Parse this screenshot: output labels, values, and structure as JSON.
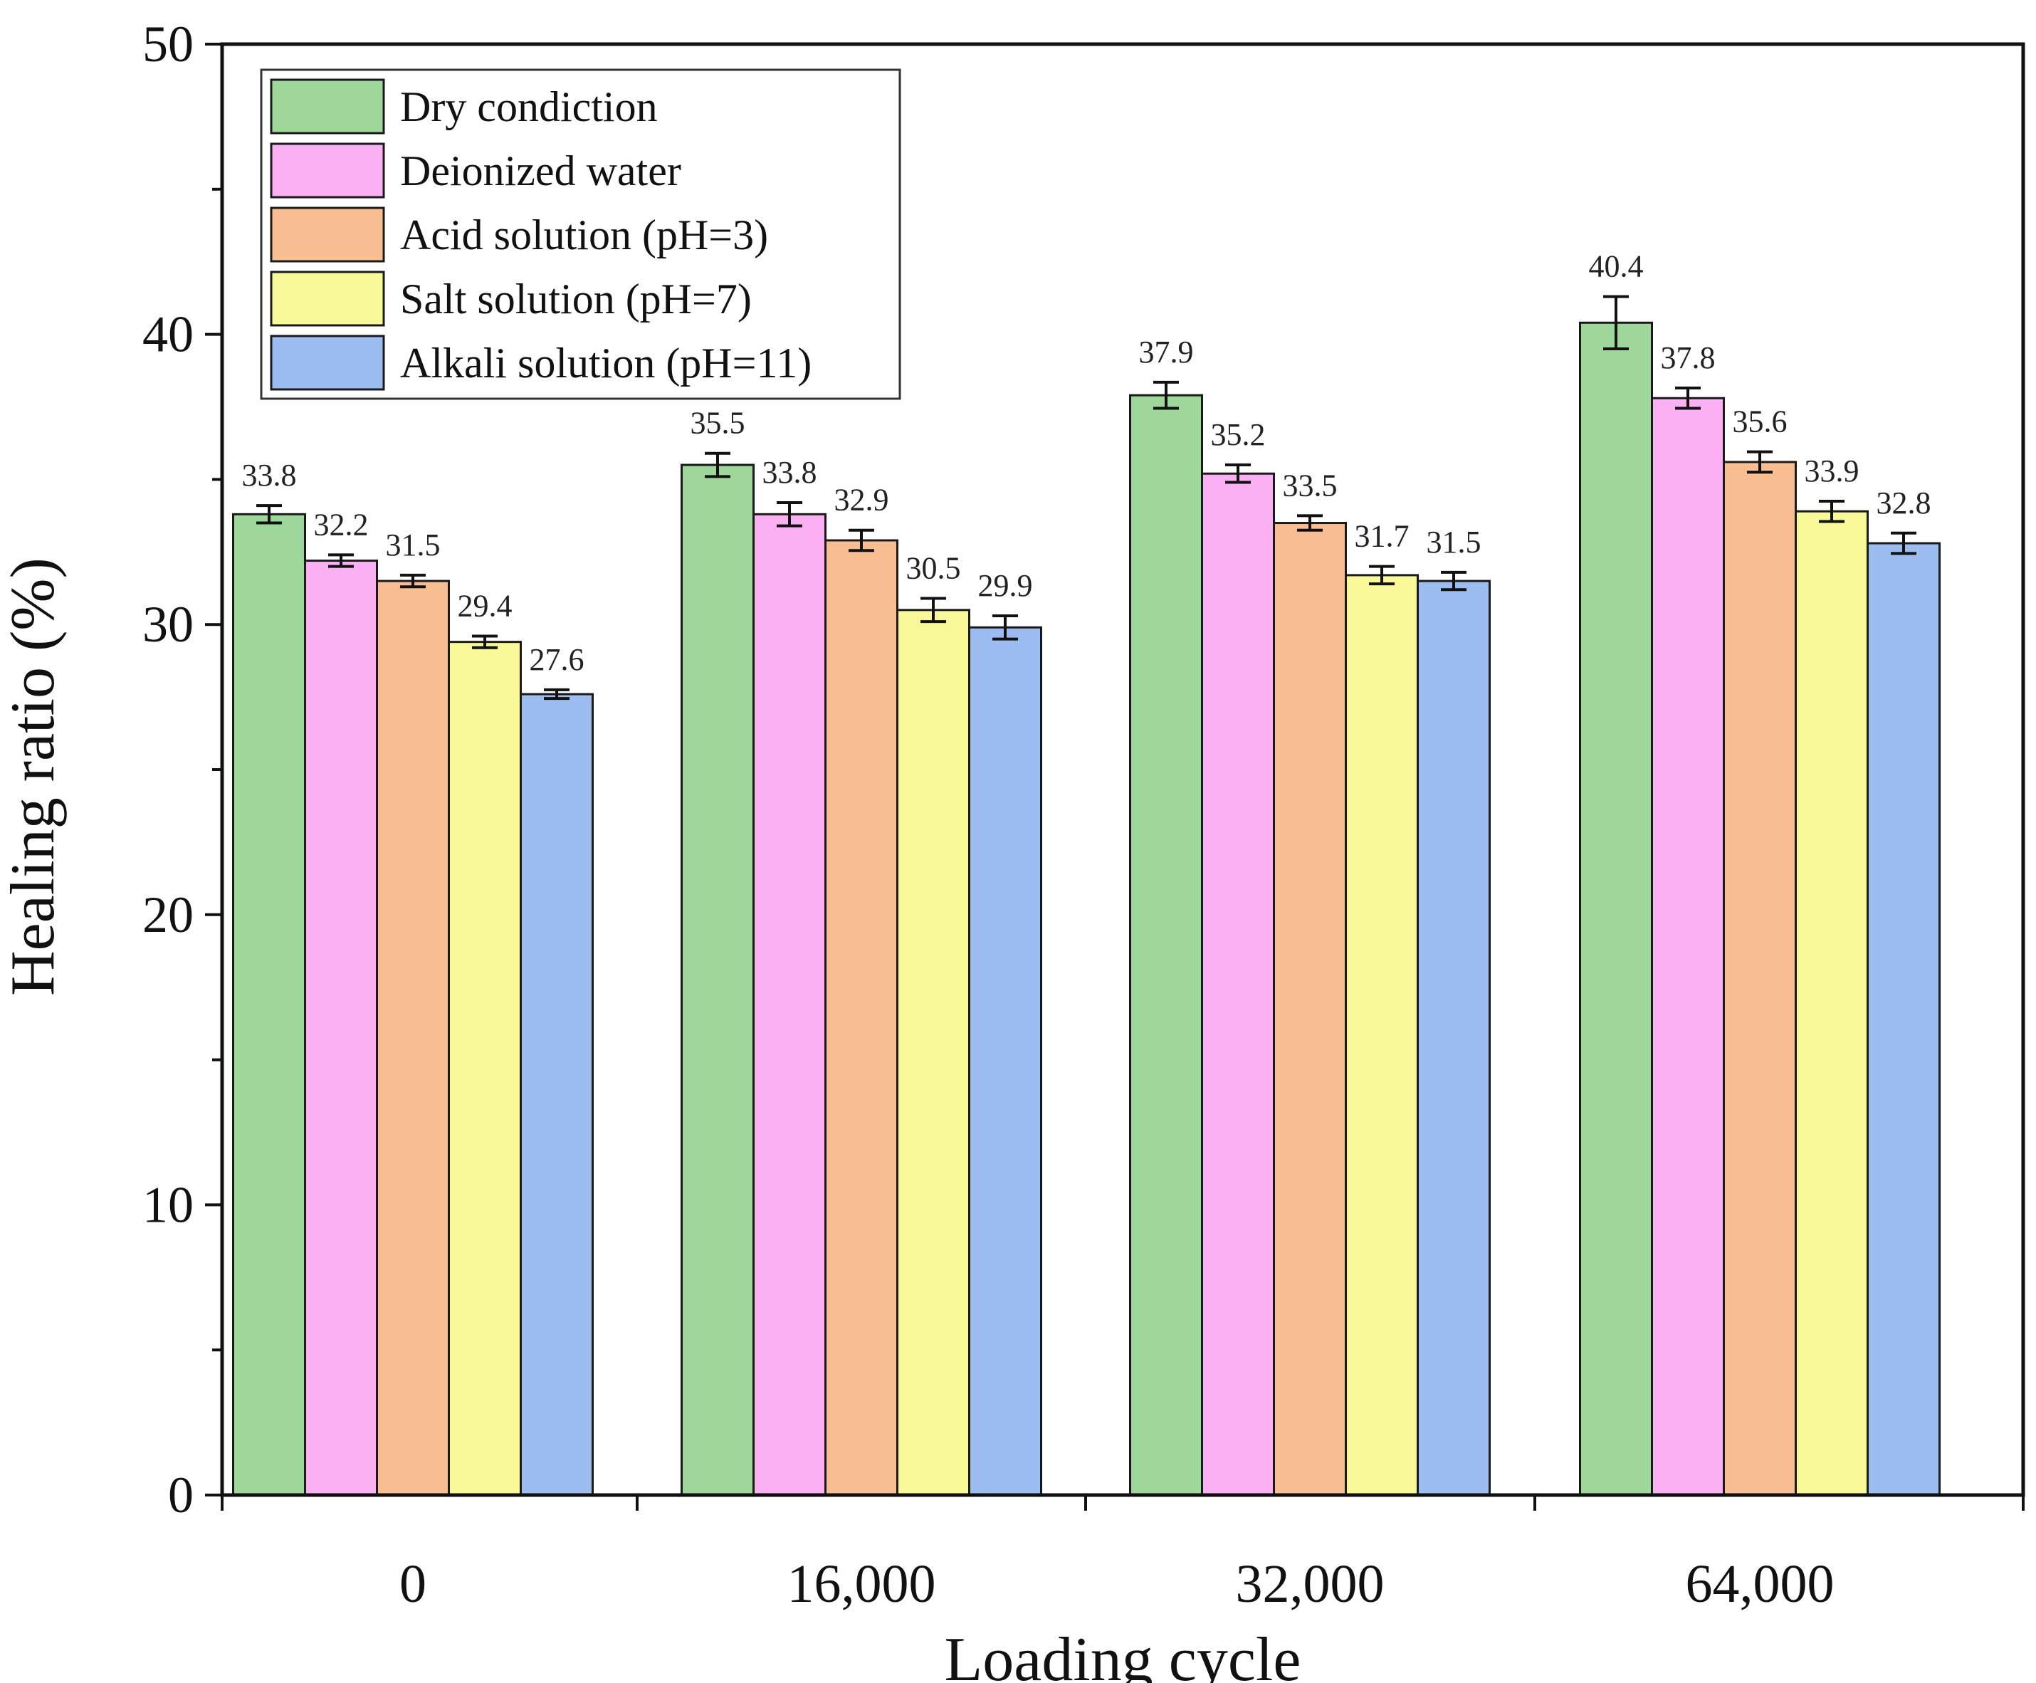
{
  "chart_data": {
    "type": "bar",
    "xlabel": "Loading cycle",
    "ylabel": "Healing ratio (%)",
    "ylim": [
      0,
      50
    ],
    "yticks": [
      0,
      10,
      20,
      30,
      40,
      50
    ],
    "grid": false,
    "legend_position": "top-left",
    "categories": [
      "0",
      "16,000",
      "32,000",
      "64,000"
    ],
    "series": [
      {
        "name": "Dry condiction",
        "color": "#9dd89a",
        "values": [
          33.8,
          35.5,
          37.9,
          40.4
        ],
        "labels": [
          "33.8",
          "35.5",
          "37.9",
          "40.4"
        ],
        "errors": [
          0.3,
          0.4,
          0.45,
          0.9
        ]
      },
      {
        "name": "Deionized water",
        "color": "#fab0f2",
        "values": [
          32.2,
          33.8,
          35.2,
          37.8
        ],
        "labels": [
          "32.2",
          "33.8",
          "35.2",
          "37.8"
        ],
        "errors": [
          0.2,
          0.4,
          0.3,
          0.35
        ]
      },
      {
        "name": "Acid solution (pH=3)",
        "color": "#f8bd90",
        "values": [
          31.5,
          32.9,
          33.5,
          35.6
        ],
        "labels": [
          "31.5",
          "32.9",
          "33.5",
          "35.6"
        ],
        "errors": [
          0.2,
          0.35,
          0.25,
          0.35
        ]
      },
      {
        "name": "Salt solution (pH=7)",
        "color": "#f9f99a",
        "values": [
          29.4,
          30.5,
          31.7,
          33.9
        ],
        "labels": [
          "29.4",
          "30.5",
          "31.7",
          "33.9"
        ],
        "errors": [
          0.2,
          0.4,
          0.3,
          0.35
        ]
      },
      {
        "name": "Alkali solution (pH=11)",
        "color": "#9dbcf0",
        "values": [
          27.6,
          29.9,
          31.5,
          32.8
        ],
        "labels": [
          "27.6",
          "29.9",
          "31.5",
          "32.8"
        ],
        "errors": [
          0.15,
          0.4,
          0.3,
          0.35
        ]
      }
    ]
  }
}
